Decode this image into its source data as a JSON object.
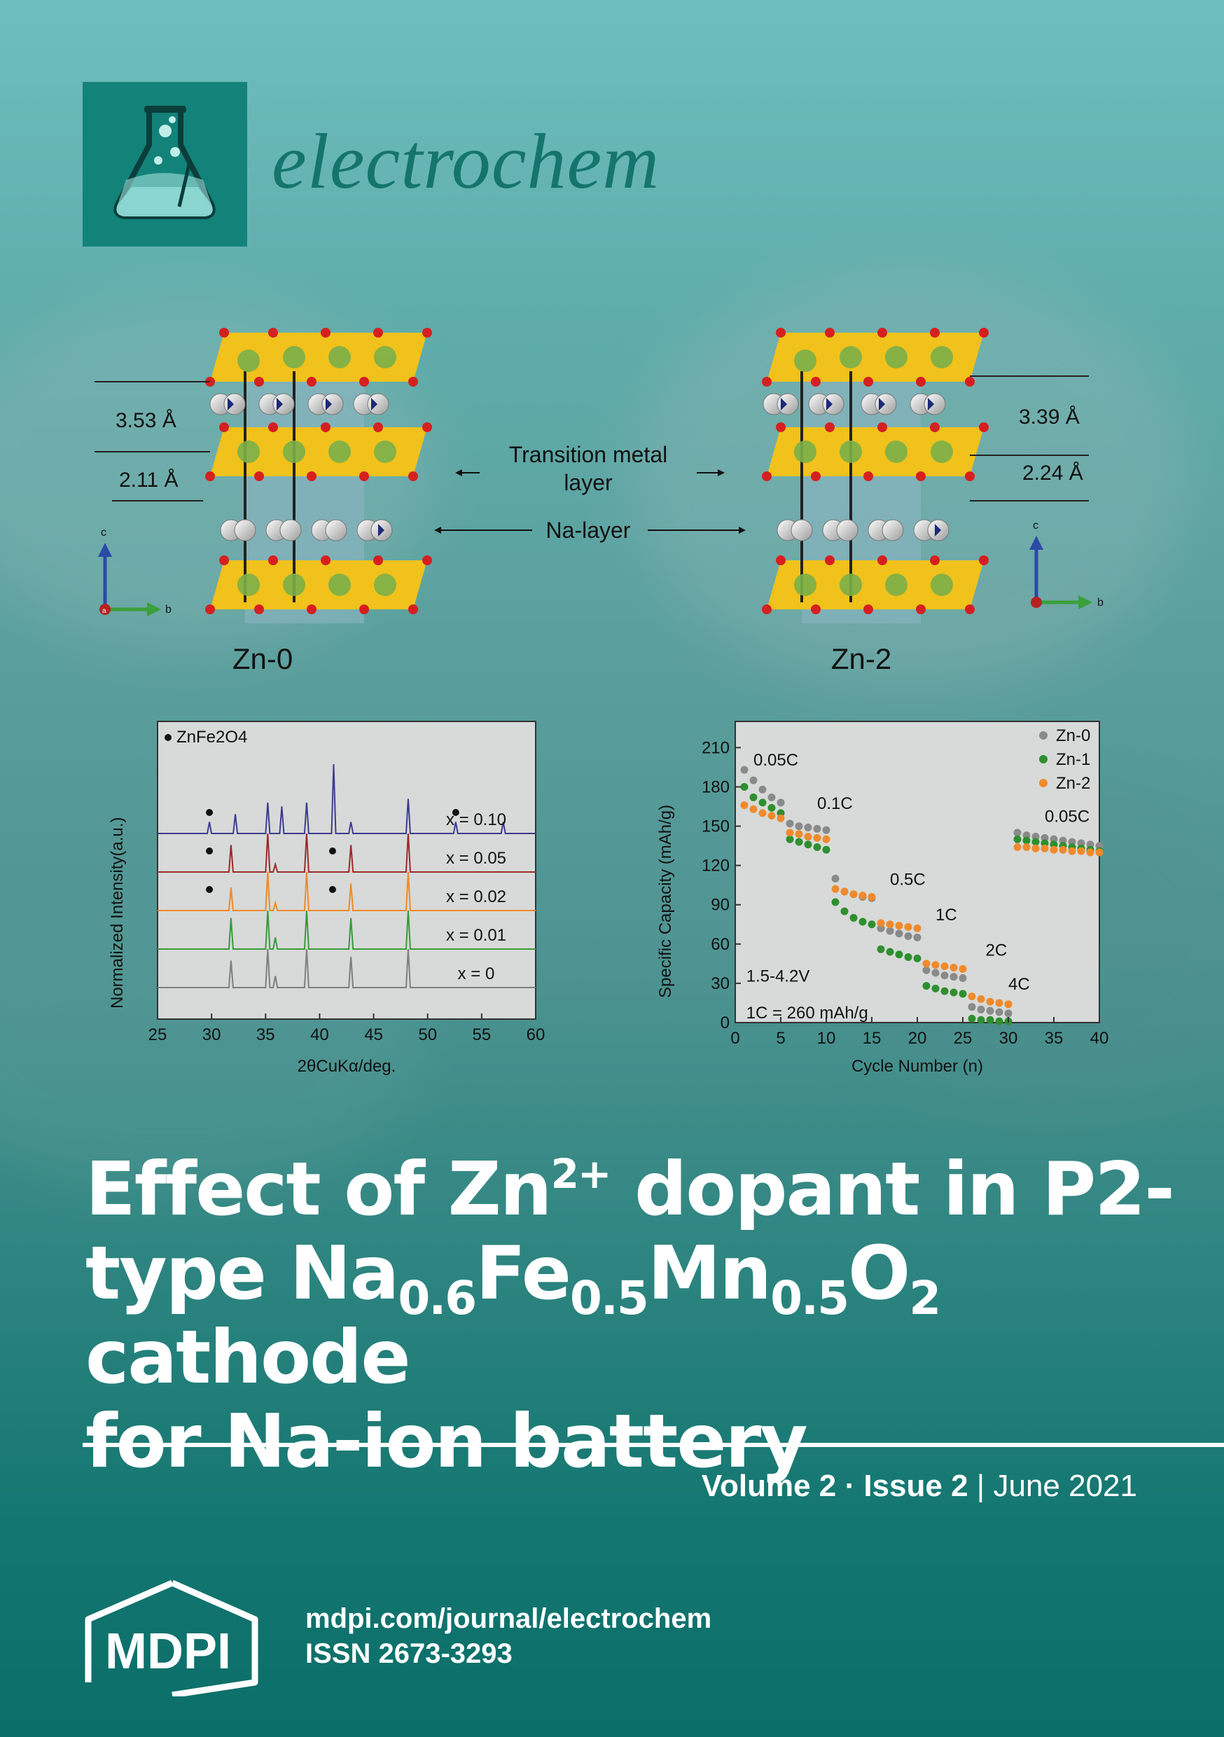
{
  "journal": {
    "name": "electrochem"
  },
  "figure_structure": {
    "left_label": "Zn-0",
    "right_label": "Zn-2",
    "left_spacing_na": "3.53 Å",
    "left_spacing_tm": "2.11 Å",
    "right_spacing_na": "3.39 Å",
    "right_spacing_tm": "2.24 Å",
    "tm_layer_label_line1": "Transition metal",
    "tm_layer_label_line2": "layer",
    "na_layer_label": "Na-layer",
    "axis_c": "c",
    "axis_b": "b",
    "axis_a": "a"
  },
  "chart_data": [
    {
      "type": "line",
      "xlabel": "2θCuKα/deg.",
      "ylabel": "Normalized Intensity(a.u.)",
      "xlim": [
        25,
        60
      ],
      "x_ticks": [
        25,
        30,
        35,
        40,
        45,
        50,
        55,
        60
      ],
      "legend": "ZnFe2O4",
      "series": [
        {
          "name": "x = 0",
          "color": "#7f7f7f",
          "peaks": [
            [
              31.8,
              0.7
            ],
            [
              35.2,
              1.0
            ],
            [
              35.9,
              0.3
            ],
            [
              38.8,
              1.0
            ],
            [
              42.9,
              0.8
            ],
            [
              48.2,
              1.0
            ]
          ]
        },
        {
          "name": "x = 0.01",
          "color": "#3a9a3a",
          "peaks": [
            [
              31.8,
              0.8
            ],
            [
              35.2,
              1.0
            ],
            [
              35.9,
              0.3
            ],
            [
              38.8,
              1.0
            ],
            [
              42.9,
              0.8
            ],
            [
              48.2,
              1.0
            ]
          ]
        },
        {
          "name": "x = 0.02",
          "color": "#f08a2c",
          "peaks": [
            [
              31.8,
              0.6
            ],
            [
              35.2,
              1.0
            ],
            [
              35.9,
              0.2
            ],
            [
              38.8,
              1.0
            ],
            [
              42.9,
              0.7
            ],
            [
              48.2,
              1.0
            ]
          ],
          "dots": [
            29.8,
            41.2
          ]
        },
        {
          "name": "x = 0.05",
          "color": "#9c2b2b",
          "peaks": [
            [
              31.8,
              0.7
            ],
            [
              35.2,
              1.0
            ],
            [
              35.9,
              0.2
            ],
            [
              38.8,
              1.0
            ],
            [
              42.9,
              0.7
            ],
            [
              48.2,
              1.0
            ]
          ],
          "dots": [
            29.8,
            41.2
          ]
        },
        {
          "name": "x = 0.10",
          "color": "#3d3d8f",
          "peaks": [
            [
              29.8,
              0.3
            ],
            [
              32.2,
              0.5
            ],
            [
              35.2,
              0.8
            ],
            [
              36.5,
              0.7
            ],
            [
              38.8,
              0.8
            ],
            [
              41.3,
              1.8
            ],
            [
              42.9,
              0.3
            ],
            [
              48.2,
              0.9
            ],
            [
              52.6,
              0.3
            ],
            [
              57.0,
              0.3
            ]
          ],
          "dots": [
            29.8,
            52.6
          ]
        }
      ]
    },
    {
      "type": "scatter",
      "xlabel": "Cycle Number (n)",
      "ylabel": "Specific Capacity (mAh/g)",
      "xlim": [
        0,
        40
      ],
      "ylim": [
        0,
        230
      ],
      "x_ticks": [
        0,
        5,
        10,
        15,
        20,
        25,
        30,
        35,
        40
      ],
      "y_ticks": [
        0,
        30,
        60,
        90,
        120,
        150,
        180,
        210
      ],
      "annotations": [
        "0.05C",
        "0.1C",
        "0.5C",
        "1C",
        "2C",
        "4C",
        "0.05C",
        "1.5-4.2V",
        "1C = 260 mAh/g"
      ],
      "series": [
        {
          "name": "Zn-0",
          "color": "#8a8a8a",
          "values": [
            193,
            185,
            178,
            172,
            168,
            152,
            150,
            149,
            148,
            147,
            110,
            100,
            98,
            96,
            95,
            72,
            70,
            68,
            66,
            65,
            40,
            38,
            36,
            35,
            34,
            12,
            10,
            9,
            8,
            7,
            145,
            143,
            142,
            141,
            140,
            139,
            138,
            137,
            136,
            135
          ]
        },
        {
          "name": "Zn-1",
          "color": "#2f8f2f",
          "values": [
            180,
            172,
            168,
            164,
            160,
            140,
            138,
            136,
            134,
            132,
            92,
            85,
            80,
            77,
            75,
            56,
            54,
            52,
            50,
            49,
            28,
            26,
            24,
            23,
            22,
            3,
            2,
            2,
            1,
            1,
            140,
            139,
            138,
            137,
            136,
            135,
            134,
            133,
            132,
            131
          ]
        },
        {
          "name": "Zn-2",
          "color": "#f08a2c",
          "values": [
            166,
            163,
            160,
            158,
            156,
            145,
            144,
            142,
            141,
            140,
            102,
            100,
            98,
            97,
            96,
            76,
            75,
            74,
            73,
            72,
            45,
            44,
            43,
            42,
            41,
            20,
            18,
            16,
            15,
            14,
            134,
            134,
            133,
            133,
            132,
            132,
            131,
            131,
            130,
            130
          ]
        }
      ]
    }
  ],
  "article": {
    "title_line1": "Effect of Zn",
    "title_sup": "2+",
    "title_line1_end": " dopant in P2-",
    "title_line2_a": "type Na",
    "title_sub1": "0.6",
    "title_line2_b": "Fe",
    "title_sub2": "0.5",
    "title_line2_c": "Mn",
    "title_sub3": "0.5",
    "title_line2_d": "O",
    "title_sub4": "2",
    "title_line2_e": " cathode",
    "title_line3": "for Na-ion battery"
  },
  "issue": {
    "volume": "Volume 2",
    "sep": " · ",
    "issue": "Issue 2",
    "divider": " | ",
    "date": "June 2021"
  },
  "publisher": {
    "name": "MDPI",
    "url": "mdpi.com/journal/electrochem",
    "issn": "ISSN 2673-3293"
  },
  "colors": {
    "teal_dark": "#0b6e68",
    "teal_light": "#6dbebd",
    "journal_green": "#15756d"
  }
}
